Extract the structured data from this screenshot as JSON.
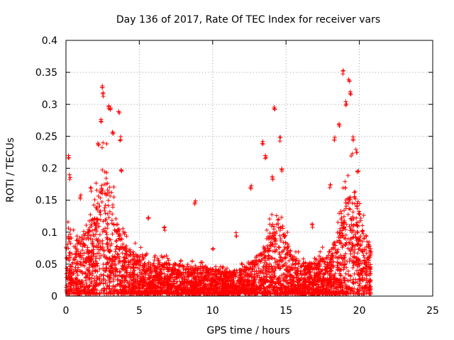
{
  "chart_data": {
    "type": "scatter",
    "title": "Day 136 of 2017, Rate Of TEC Index for receiver vars",
    "xlabel": "GPS time / hours",
    "ylabel": "ROTI / TECUs",
    "xlim": [
      0,
      25
    ],
    "ylim": [
      0,
      0.4
    ],
    "grid": true,
    "x_ticks": [
      0,
      5,
      10,
      15,
      20,
      25
    ],
    "x_tick_labels": [
      "0",
      "5",
      "10",
      "15",
      "20",
      "25"
    ],
    "y_ticks": [
      0,
      0.05,
      0.1,
      0.15,
      0.2,
      0.25,
      0.3,
      0.35,
      0.4
    ],
    "y_tick_labels": [
      "0",
      "0.05",
      "0.1",
      "0.15",
      "0.2",
      "0.25",
      "0.3",
      "0.35",
      "0.4"
    ],
    "marker": "+",
    "marker_color": "#ff0000",
    "data_x_range": [
      0,
      20.8
    ],
    "envelope": {
      "description": "approximate density envelope of the ROTI scatter (x hours, typical upper ROTI)",
      "x": [
        0,
        0.25,
        0.5,
        1,
        1.5,
        2,
        2.3,
        2.6,
        3,
        3.3,
        3.6,
        4,
        5,
        6,
        7,
        8,
        9,
        10,
        11,
        12,
        12.5,
        13,
        13.5,
        14,
        14.5,
        15,
        15.5,
        16,
        17,
        17.5,
        18,
        18.5,
        19,
        19.5,
        20,
        20.5,
        20.8
      ],
      "y": [
        0.08,
        0.1,
        0.08,
        0.09,
        0.1,
        0.13,
        0.17,
        0.2,
        0.17,
        0.13,
        0.1,
        0.08,
        0.06,
        0.05,
        0.05,
        0.045,
        0.045,
        0.04,
        0.035,
        0.04,
        0.05,
        0.06,
        0.08,
        0.1,
        0.12,
        0.09,
        0.06,
        0.05,
        0.05,
        0.06,
        0.07,
        0.1,
        0.14,
        0.18,
        0.13,
        0.09,
        0.07
      ]
    },
    "notable_points": [
      {
        "x": 0.2,
        "y": 0.22
      },
      {
        "x": 0.25,
        "y": 0.19
      },
      {
        "x": 1.0,
        "y": 0.16
      },
      {
        "x": 1.7,
        "y": 0.17
      },
      {
        "x": 2.2,
        "y": 0.24
      },
      {
        "x": 2.4,
        "y": 0.28
      },
      {
        "x": 2.5,
        "y": 0.33
      },
      {
        "x": 2.55,
        "y": 0.32
      },
      {
        "x": 2.9,
        "y": 0.3
      },
      {
        "x": 3.0,
        "y": 0.295
      },
      {
        "x": 3.2,
        "y": 0.26
      },
      {
        "x": 3.6,
        "y": 0.29
      },
      {
        "x": 3.7,
        "y": 0.25
      },
      {
        "x": 3.8,
        "y": 0.2
      },
      {
        "x": 5.6,
        "y": 0.125
      },
      {
        "x": 6.7,
        "y": 0.11
      },
      {
        "x": 8.8,
        "y": 0.15
      },
      {
        "x": 10.0,
        "y": 0.08
      },
      {
        "x": 11.6,
        "y": 0.1
      },
      {
        "x": 12.6,
        "y": 0.175
      },
      {
        "x": 13.4,
        "y": 0.245
      },
      {
        "x": 13.6,
        "y": 0.22
      },
      {
        "x": 14.1,
        "y": 0.187
      },
      {
        "x": 14.2,
        "y": 0.297
      },
      {
        "x": 14.6,
        "y": 0.25
      },
      {
        "x": 14.7,
        "y": 0.2
      },
      {
        "x": 16.8,
        "y": 0.115
      },
      {
        "x": 18.0,
        "y": 0.175
      },
      {
        "x": 18.3,
        "y": 0.25
      },
      {
        "x": 18.6,
        "y": 0.27
      },
      {
        "x": 18.9,
        "y": 0.355
      },
      {
        "x": 19.1,
        "y": 0.305
      },
      {
        "x": 19.3,
        "y": 0.34
      },
      {
        "x": 19.4,
        "y": 0.32
      },
      {
        "x": 19.6,
        "y": 0.25
      },
      {
        "x": 19.8,
        "y": 0.23
      },
      {
        "x": 19.9,
        "y": 0.2
      }
    ]
  }
}
